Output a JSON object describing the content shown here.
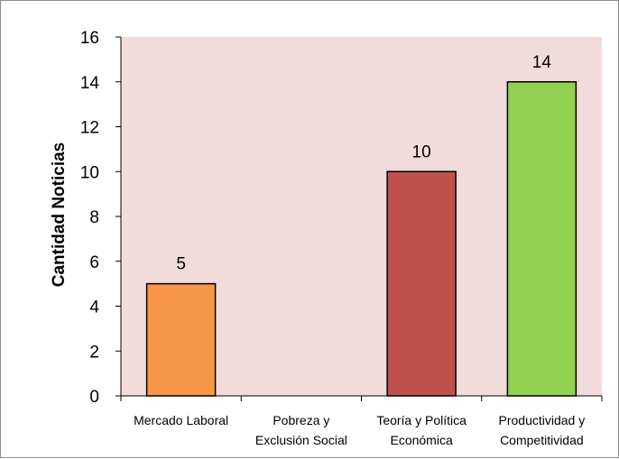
{
  "chart_data": {
    "type": "bar",
    "title": "",
    "xlabel": "",
    "ylabel": "Cantidad Noticias",
    "ylim": [
      0,
      16
    ],
    "yticks": [
      0,
      2,
      4,
      6,
      8,
      10,
      12,
      14,
      16
    ],
    "grid": false,
    "legend": "none",
    "plot_background": "#f2dcdb",
    "categories": [
      [
        "Mercado Laboral"
      ],
      [
        "Pobreza y",
        "Exclusión Social"
      ],
      [
        "Teoría y Política",
        "Económica"
      ],
      [
        "Productividad y",
        "Competitividad"
      ]
    ],
    "values": [
      5,
      0,
      10,
      14
    ],
    "data_labels": [
      "5",
      "",
      "10",
      "14"
    ],
    "colors": [
      "#f79646",
      "#4f81bd",
      "#c0504d",
      "#92d050"
    ]
  }
}
